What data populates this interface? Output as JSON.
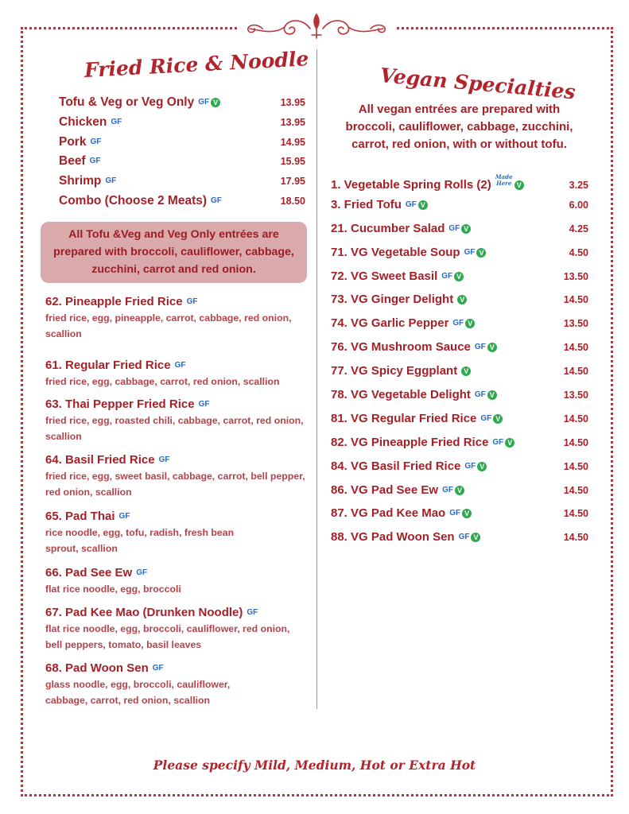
{
  "left": {
    "title": "Fried Rice & Noodle",
    "top_items": [
      {
        "name": "Tofu & Veg or Veg Only",
        "gf": "GF",
        "vegan": "V",
        "price": "13.95"
      },
      {
        "name": "Chicken",
        "gf": "GF",
        "vegan": "",
        "price": "13.95"
      },
      {
        "name": "Pork",
        "gf": "GF",
        "vegan": "",
        "price": "14.95"
      },
      {
        "name": "Beef",
        "gf": "GF",
        "vegan": "",
        "price": "15.95"
      },
      {
        "name": "Shrimp",
        "gf": "GF",
        "vegan": "",
        "price": "17.95"
      },
      {
        "name": "Combo (Choose 2 Meats)",
        "gf": "GF",
        "vegan": "",
        "price": "18.50"
      }
    ],
    "note": "All Tofu &Veg and Veg Only entrées are prepared with broccoli, cauliflower, cabbage, zucchini, carrot and red onion.",
    "items": [
      {
        "name": "62.  Pineapple Fried Rice",
        "gf": "GF",
        "desc": "fried rice, egg, pineapple, carrot, cabbage, red onion, scallion"
      },
      {
        "name": "61.  Regular Fried Rice",
        "gf": "GF",
        "desc": "fried rice, egg, cabbage, carrot, red onion, scallion"
      },
      {
        "name": "63.  Thai Pepper Fried Rice",
        "gf": "GF",
        "desc": "fried rice, egg, roasted chili, cabbage, carrot, red onion, scallion"
      },
      {
        "name": "64.  Basil Fried Rice",
        "gf": "GF",
        "desc": "fried rice, egg, sweet basil, cabbage, carrot, bell pepper, red onion, scallion"
      },
      {
        "name": "65.  Pad Thai",
        "gf": "GF",
        "desc": "rice noodle, egg, tofu, radish, fresh bean sprout, scallion"
      },
      {
        "name": "66.  Pad See Ew",
        "gf": "GF",
        "desc": "flat rice noodle, egg, broccoli"
      },
      {
        "name": "67.  Pad Kee Mao (Drunken Noodle)",
        "gf": "GF",
        "desc": "flat rice noodle, egg, broccoli, cauliflower, red onion, bell peppers, tomato, basil leaves"
      },
      {
        "name": "68. Pad Woon Sen",
        "gf": "GF",
        "desc": "glass noodle, egg, broccoli, cauliflower, cabbage, carrot, red onion, scallion"
      }
    ]
  },
  "right": {
    "title": "Vegan Specialties",
    "intro": "All vegan entrées are prepared with broccoli, cauliflower, cabbage, zucchini, carrot, red onion, with or without tofu.",
    "items": [
      {
        "name": "1.  Vegetable Spring Rolls (2)",
        "gf": "",
        "made": "Made Here",
        "vegan": "V",
        "price": "3.25"
      },
      {
        "name": "3.  Fried Tofu",
        "gf": "GF",
        "made": "",
        "vegan": "V",
        "price": "6.00"
      },
      {
        "name": "21.  Cucumber Salad",
        "gf": "GF",
        "made": "",
        "vegan": "V",
        "price": "4.25"
      },
      {
        "name": "71.  VG Vegetable Soup",
        "gf": "GF",
        "made": "",
        "vegan": "V",
        "price": "4.50"
      },
      {
        "name": "72.  VG Sweet Basil",
        "gf": "GF",
        "made": "",
        "vegan": "V",
        "price": "13.50"
      },
      {
        "name": "73.  VG Ginger Delight",
        "gf": "",
        "made": "",
        "vegan": "V",
        "price": "14.50"
      },
      {
        "name": "74.  VG Garlic Pepper",
        "gf": "GF",
        "made": "",
        "vegan": "V",
        "price": "13.50"
      },
      {
        "name": "76.  VG Mushroom Sauce",
        "gf": "GF",
        "made": "",
        "vegan": "V",
        "price": "14.50"
      },
      {
        "name": "77.  VG Spicy Eggplant",
        "gf": "",
        "made": "",
        "vegan": "V",
        "price": "14.50"
      },
      {
        "name": "78.  VG Vegetable Delight",
        "gf": "GF",
        "made": "",
        "vegan": "V",
        "price": "13.50"
      },
      {
        "name": "81.  VG Regular Fried Rice",
        "gf": "GF",
        "made": "",
        "vegan": "V",
        "price": "14.50"
      },
      {
        "name": "82.  VG Pineapple Fried Rice",
        "gf": "GF",
        "made": "",
        "vegan": "V",
        "price": "14.50"
      },
      {
        "name": "84.  VG Basil Fried Rice",
        "gf": "GF",
        "made": "",
        "vegan": "V",
        "price": "14.50"
      },
      {
        "name": "86.  VG Pad See Ew",
        "gf": "GF",
        "made": "",
        "vegan": "V",
        "price": "14.50"
      },
      {
        "name": "87.  VG Pad Kee Mao",
        "gf": "GF",
        "made": "",
        "vegan": "V",
        "price": "14.50"
      },
      {
        "name": "88.  VG Pad Woon Sen",
        "gf": "GF",
        "made": "",
        "vegan": "V",
        "price": "14.50"
      }
    ]
  },
  "footer": "Please specify Mild, Medium, Hot or Extra Hot",
  "colors": {
    "accent": "#b2242b",
    "gf": "#2a6bc4",
    "vegan": "#2fa84f",
    "note_bg": "#d9a9ab"
  }
}
